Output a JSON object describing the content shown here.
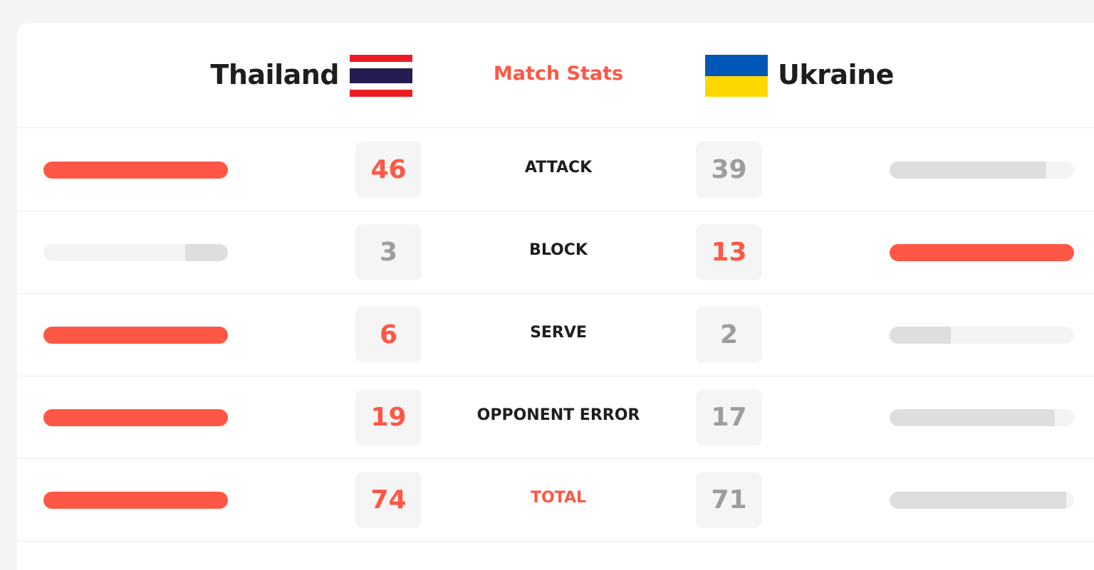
{
  "header": {
    "title": "Match Stats",
    "home_team": {
      "name": "Thailand",
      "flag": "thailand-flag"
    },
    "away_team": {
      "name": "Ukraine",
      "flag": "ukraine-flag"
    }
  },
  "colors": {
    "accent": "#ff5745",
    "muted_bar": "#dedede",
    "track": "#f4f4f4",
    "muted_text": "#9d9d9d"
  },
  "stats": [
    {
      "label": "ATTACK",
      "home": "46",
      "away": "39",
      "home_share": 1.0,
      "away_share": 0.848
    },
    {
      "label": "BLOCK",
      "home": "3",
      "away": "13",
      "home_share": 0.231,
      "away_share": 1.0
    },
    {
      "label": "SERVE",
      "home": "6",
      "away": "2",
      "home_share": 1.0,
      "away_share": 0.333
    },
    {
      "label": "OPPONENT ERROR",
      "home": "19",
      "away": "17",
      "home_share": 1.0,
      "away_share": 0.895
    },
    {
      "label": "TOTAL",
      "home": "74",
      "away": "71",
      "home_share": 1.0,
      "away_share": 0.959
    }
  ]
}
